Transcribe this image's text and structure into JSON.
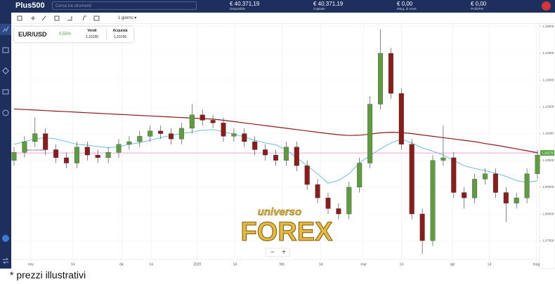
{
  "header": {
    "logo": "Plus500",
    "search_placeholder": "Cerca tra strumenti",
    "stats": [
      {
        "value": "€ 40.371,19",
        "label": "Disponibile"
      },
      {
        "value": "€ 40.371,19",
        "label": "Capitale"
      },
      {
        "value": "€ 0,00",
        "label": "Marg. di mant."
      },
      {
        "value": "€ 0,00",
        "label": "Profit/Per"
      }
    ]
  },
  "toolbar": {
    "timeframe": "1 giorno"
  },
  "instrument": {
    "name": "EUR/USD",
    "change": "0,55%",
    "sell_label": "Vendi",
    "sell": "1,10150",
    "buy_label": "Acquista",
    "buy": "1,10156"
  },
  "chart_data": {
    "type": "candlestick",
    "open": [
      1.1,
      1.103,
      1.107,
      1.11,
      1.104,
      1.101,
      1.099,
      1.105,
      1.102,
      1.101,
      1.103,
      1.106,
      1.107,
      1.109,
      1.111,
      1.11,
      1.108,
      1.112,
      1.117,
      1.115,
      1.114,
      1.109,
      1.11,
      1.107,
      1.104,
      1.102,
      1.1,
      1.105,
      1.098,
      1.091,
      1.086,
      1.082,
      1.08,
      1.09,
      1.099,
      1.121,
      1.14,
      1.125,
      1.106,
      1.08,
      1.07,
      1.1,
      1.101,
      1.088,
      1.086,
      1.093,
      1.095,
      1.088,
      1.084,
      1.086,
      1.095
    ],
    "high": [
      1.105,
      1.109,
      1.116,
      1.112,
      1.106,
      1.103,
      1.107,
      1.107,
      1.104,
      1.105,
      1.108,
      1.109,
      1.111,
      1.113,
      1.113,
      1.112,
      1.114,
      1.121,
      1.119,
      1.117,
      1.116,
      1.112,
      1.112,
      1.109,
      1.106,
      1.104,
      1.107,
      1.107,
      1.1,
      1.093,
      1.088,
      1.084,
      1.092,
      1.101,
      1.124,
      1.149,
      1.142,
      1.127,
      1.108,
      1.082,
      1.102,
      1.113,
      1.103,
      1.09,
      1.095,
      1.097,
      1.097,
      1.09,
      1.088,
      1.097,
      1.104
    ],
    "low": [
      1.098,
      1.101,
      1.105,
      1.102,
      1.099,
      1.097,
      1.097,
      1.1,
      1.099,
      1.099,
      1.101,
      1.104,
      1.105,
      1.107,
      1.108,
      1.106,
      1.106,
      1.11,
      1.113,
      1.112,
      1.107,
      1.107,
      1.105,
      1.102,
      1.1,
      1.098,
      1.098,
      1.096,
      1.089,
      1.084,
      1.08,
      1.078,
      1.078,
      1.088,
      1.097,
      1.119,
      1.123,
      1.104,
      1.078,
      1.065,
      1.068,
      1.098,
      1.086,
      1.082,
      1.084,
      1.091,
      1.086,
      1.077,
      1.082,
      1.084,
      1.093
    ],
    "close": [
      1.103,
      1.107,
      1.11,
      1.104,
      1.101,
      1.099,
      1.105,
      1.102,
      1.101,
      1.103,
      1.106,
      1.107,
      1.109,
      1.111,
      1.11,
      1.108,
      1.112,
      1.117,
      1.115,
      1.114,
      1.109,
      1.11,
      1.107,
      1.104,
      1.102,
      1.1,
      1.105,
      1.098,
      1.091,
      1.086,
      1.082,
      1.08,
      1.09,
      1.099,
      1.121,
      1.14,
      1.125,
      1.106,
      1.08,
      1.07,
      1.1,
      1.101,
      1.088,
      1.086,
      1.093,
      1.095,
      1.088,
      1.084,
      1.086,
      1.095,
      1.102
    ],
    "colors": {
      "up": "#5e9c3f",
      "down": "#8a1c1c"
    },
    "lines": [
      {
        "color": "#8b1a1a",
        "values": [
          1.1192,
          1.119,
          1.1188,
          1.1186,
          1.1184,
          1.1182,
          1.118,
          1.1178,
          1.1176,
          1.1174,
          1.1172,
          1.117,
          1.1168,
          1.1166,
          1.1164,
          1.1162,
          1.116,
          1.1158,
          1.1156,
          1.1154,
          1.115,
          1.1145,
          1.114,
          1.1135,
          1.113,
          1.1125,
          1.112,
          1.1115,
          1.111,
          1.1105,
          1.11,
          1.1096,
          1.1093,
          1.1094,
          1.1098,
          1.1103,
          1.1105,
          1.1104,
          1.11,
          1.1095,
          1.109,
          1.1085,
          1.108,
          1.1075,
          1.107,
          1.1063,
          1.1057,
          1.105,
          1.1043,
          1.1036,
          1.1029
        ]
      },
      {
        "color": "#5bb8e0",
        "values": [
          1.106,
          1.107,
          1.108,
          1.1085,
          1.108,
          1.107,
          1.106,
          1.1057,
          1.1052,
          1.1048,
          1.105,
          1.106,
          1.1066,
          1.1075,
          1.1085,
          1.1093,
          1.11,
          1.1106,
          1.1113,
          1.1115,
          1.1107,
          1.1098,
          1.1088,
          1.1075,
          1.1065,
          1.1058,
          1.104,
          1.101,
          1.098,
          1.095,
          1.0915,
          1.0925,
          1.095,
          1.099,
          1.1018,
          1.1043,
          1.1065,
          1.108,
          1.1065,
          1.1047,
          1.1034,
          1.102,
          1.1,
          1.098,
          1.097,
          1.0962,
          1.0952,
          1.094,
          1.0925,
          1.0918,
          1.0924
        ]
      }
    ],
    "current_rate": {
      "label": "Tasso corrente di",
      "value": 1.10279,
      "value_label": "1,10279",
      "color": "#f0a0e0"
    },
    "xlim": [
      0,
      50
    ],
    "xticks": [
      {
        "value": 1.6,
        "label": "nov"
      },
      {
        "value": 5.6,
        "label": "14"
      },
      {
        "value": 10.3,
        "label": "dic"
      },
      {
        "value": 13.1,
        "label": "14"
      },
      {
        "value": 17.5,
        "label": "2020"
      },
      {
        "value": 21.1,
        "label": "14"
      },
      {
        "value": 25.6,
        "label": "feb"
      },
      {
        "value": 29.3,
        "label": "14"
      },
      {
        "value": 33.4,
        "label": "mar"
      },
      {
        "value": 37,
        "label": "14"
      },
      {
        "value": 41.9,
        "label": "apr"
      },
      {
        "value": 45.4,
        "label": "14"
      },
      {
        "value": 49.9,
        "label": "mag"
      }
    ],
    "ylim": [
      1.063,
      1.151
    ],
    "yticks": [
      {
        "value": 1.07,
        "label": "1,07000"
      },
      {
        "value": 1.08,
        "label": "1,08000"
      },
      {
        "value": 1.09,
        "label": "1,09000"
      },
      {
        "value": 1.1,
        "label": "1,10000"
      },
      {
        "value": 1.11,
        "label": "1,11000"
      },
      {
        "value": 1.12,
        "label": "1,12000"
      },
      {
        "value": 1.13,
        "label": "1,13000"
      },
      {
        "value": 1.14,
        "label": "1,14000"
      },
      {
        "value": 1.15,
        "label": "1,15000"
      }
    ],
    "grid": true
  },
  "watermark": {
    "top": "universo",
    "main": "FOREX"
  },
  "zoom": {
    "out": "−",
    "in": "+"
  },
  "footnote": "* prezzi illustrativi"
}
